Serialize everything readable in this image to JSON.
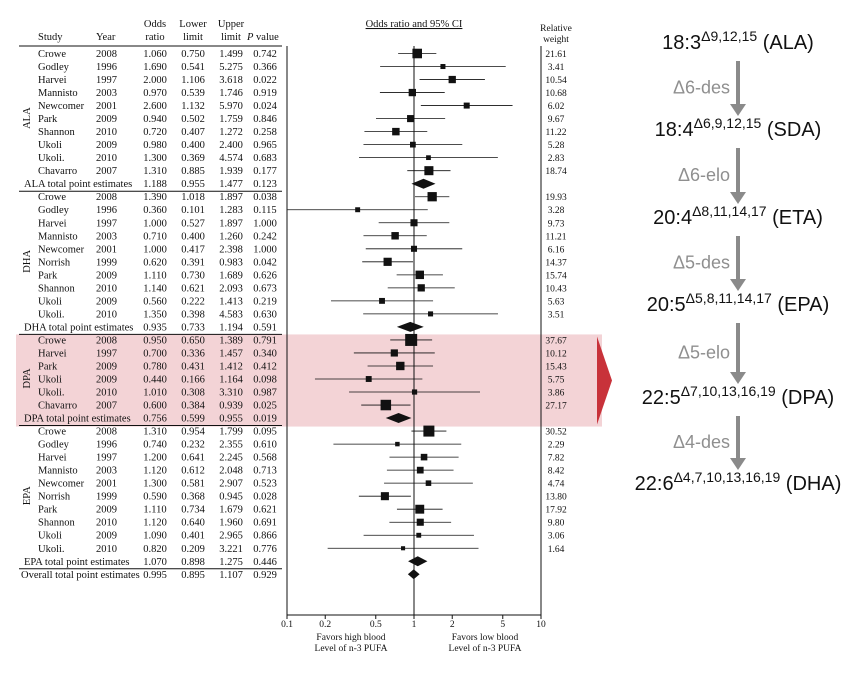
{
  "chart_data": {
    "type": "forest",
    "header": {
      "study": "Study",
      "year": "Year",
      "or": "Odds ratio",
      "lower": "Lower limit",
      "upper": "Upper limit",
      "p": "P value",
      "plot_title": "Odds ratio and 95% CI",
      "weight": "Relative weight"
    },
    "x_axis": {
      "scale": "log",
      "range": [
        0.1,
        10
      ],
      "ticks": [
        "0.1",
        "0.2",
        "0.5",
        "1",
        "2",
        "5",
        "10"
      ],
      "left_label": [
        "Favors high blood",
        "Level of n-3 PUFA"
      ],
      "right_label": [
        "Favors low blood",
        "Level of n-3 PUFA"
      ]
    },
    "groups": [
      {
        "name": "ALA",
        "highlight": false,
        "rows": [
          {
            "study": "Crowe",
            "year": "2008",
            "or": "1.060",
            "lower": "0.750",
            "upper": "1.499",
            "p": "0.742",
            "weight": "21.61"
          },
          {
            "study": "Godley",
            "year": "1996",
            "or": "1.690",
            "lower": "0.541",
            "upper": "5.275",
            "p": "0.366",
            "weight": "3.41"
          },
          {
            "study": "Harvei",
            "year": "1997",
            "or": "2.000",
            "lower": "1.106",
            "upper": "3.618",
            "p": "0.022",
            "weight": "10.54"
          },
          {
            "study": "Mannisto",
            "year": "2003",
            "or": "0.970",
            "lower": "0.539",
            "upper": "1.746",
            "p": "0.919",
            "weight": "10.68"
          },
          {
            "study": "Newcomer",
            "year": "2001",
            "or": "2.600",
            "lower": "1.132",
            "upper": "5.970",
            "p": "0.024",
            "weight": "6.02"
          },
          {
            "study": "Park",
            "year": "2009",
            "or": "0.940",
            "lower": "0.502",
            "upper": "1.759",
            "p": "0.846",
            "weight": "9.67"
          },
          {
            "study": "Shannon",
            "year": "2010",
            "or": "0.720",
            "lower": "0.407",
            "upper": "1.272",
            "p": "0.258",
            "weight": "11.22"
          },
          {
            "study": "Ukoli",
            "year": "2009",
            "or": "0.980",
            "lower": "0.400",
            "upper": "2.400",
            "p": "0.965",
            "weight": "5.28"
          },
          {
            "study": "Ukoli.",
            "year": "2010",
            "or": "1.300",
            "lower": "0.369",
            "upper": "4.574",
            "p": "0.683",
            "weight": "2.83"
          },
          {
            "study": "Chavarro",
            "year": "2007",
            "or": "1.310",
            "lower": "0.885",
            "upper": "1.939",
            "p": "0.177",
            "weight": "18.74"
          }
        ],
        "total": {
          "label": "ALA total point estimates",
          "or": "1.188",
          "lower": "0.955",
          "upper": "1.477",
          "p": "0.123"
        }
      },
      {
        "name": "DHA",
        "highlight": false,
        "rows": [
          {
            "study": "Crowe",
            "year": "2008",
            "or": "1.390",
            "lower": "1.018",
            "upper": "1.897",
            "p": "0.038",
            "weight": "19.93"
          },
          {
            "study": "Godley",
            "year": "1996",
            "or": "0.360",
            "lower": "0.101",
            "upper": "1.283",
            "p": "0.115",
            "weight": "3.28"
          },
          {
            "study": "Harvei",
            "year": "1997",
            "or": "1.000",
            "lower": "0.527",
            "upper": "1.897",
            "p": "1.000",
            "weight": "9.73"
          },
          {
            "study": "Mannisto",
            "year": "2003",
            "or": "0.710",
            "lower": "0.400",
            "upper": "1.260",
            "p": "0.242",
            "weight": "11.21"
          },
          {
            "study": "Newcomer",
            "year": "2001",
            "or": "1.000",
            "lower": "0.417",
            "upper": "2.398",
            "p": "1.000",
            "weight": "6.16"
          },
          {
            "study": "Norrish",
            "year": "1999",
            "or": "0.620",
            "lower": "0.391",
            "upper": "0.983",
            "p": "0.042",
            "weight": "14.37"
          },
          {
            "study": "Park",
            "year": "2009",
            "or": "1.110",
            "lower": "0.730",
            "upper": "1.689",
            "p": "0.626",
            "weight": "15.74"
          },
          {
            "study": "Shannon",
            "year": "2010",
            "or": "1.140",
            "lower": "0.621",
            "upper": "2.093",
            "p": "0.673",
            "weight": "10.43"
          },
          {
            "study": "Ukoli",
            "year": "2009",
            "or": "0.560",
            "lower": "0.222",
            "upper": "1.413",
            "p": "0.219",
            "weight": "5.63"
          },
          {
            "study": "Ukoli.",
            "year": "2010",
            "or": "1.350",
            "lower": "0.398",
            "upper": "4.583",
            "p": "0.630",
            "weight": "3.51"
          }
        ],
        "total": {
          "label": "DHA total point estimates",
          "or": "0.935",
          "lower": "0.733",
          "upper": "1.194",
          "p": "0.591"
        }
      },
      {
        "name": "DPA",
        "highlight": true,
        "rows": [
          {
            "study": "Crowe",
            "year": "2008",
            "or": "0.950",
            "lower": "0.650",
            "upper": "1.389",
            "p": "0.791",
            "weight": "37.67"
          },
          {
            "study": "Harvei",
            "year": "1997",
            "or": "0.700",
            "lower": "0.336",
            "upper": "1.457",
            "p": "0.340",
            "weight": "10.12"
          },
          {
            "study": "Park",
            "year": "2009",
            "or": "0.780",
            "lower": "0.431",
            "upper": "1.412",
            "p": "0.412",
            "weight": "15.43"
          },
          {
            "study": "Ukoli",
            "year": "2009",
            "or": "0.440",
            "lower": "0.166",
            "upper": "1.164",
            "p": "0.098",
            "weight": "5.75"
          },
          {
            "study": "Ukoli.",
            "year": "2010",
            "or": "1.010",
            "lower": "0.308",
            "upper": "3.310",
            "p": "0.987",
            "weight": "3.86"
          },
          {
            "study": "Chavarro",
            "year": "2007",
            "or": "0.600",
            "lower": "0.384",
            "upper": "0.939",
            "p": "0.025",
            "weight": "27.17"
          }
        ],
        "total": {
          "label": "DPA total point estimates",
          "or": "0.756",
          "lower": "0.599",
          "upper": "0.955",
          "p": "0.019"
        }
      },
      {
        "name": "EPA",
        "highlight": false,
        "rows": [
          {
            "study": "Crowe",
            "year": "2008",
            "or": "1.310",
            "lower": "0.954",
            "upper": "1.799",
            "p": "0.095",
            "weight": "30.52"
          },
          {
            "study": "Godley",
            "year": "1996",
            "or": "0.740",
            "lower": "0.232",
            "upper": "2.355",
            "p": "0.610",
            "weight": "2.29"
          },
          {
            "study": "Harvei",
            "year": "1997",
            "or": "1.200",
            "lower": "0.641",
            "upper": "2.245",
            "p": "0.568",
            "weight": "7.82"
          },
          {
            "study": "Mannisto",
            "year": "2003",
            "or": "1.120",
            "lower": "0.612",
            "upper": "2.048",
            "p": "0.713",
            "weight": "8.42"
          },
          {
            "study": "Newcomer",
            "year": "2001",
            "or": "1.300",
            "lower": "0.581",
            "upper": "2.907",
            "p": "0.523",
            "weight": "4.74"
          },
          {
            "study": "Norrish",
            "year": "1999",
            "or": "0.590",
            "lower": "0.368",
            "upper": "0.945",
            "p": "0.028",
            "weight": "13.80"
          },
          {
            "study": "Park",
            "year": "2009",
            "or": "1.110",
            "lower": "0.734",
            "upper": "1.679",
            "p": "0.621",
            "weight": "17.92"
          },
          {
            "study": "Shannon",
            "year": "2010",
            "or": "1.120",
            "lower": "0.640",
            "upper": "1.960",
            "p": "0.691",
            "weight": "9.80"
          },
          {
            "study": "Ukoli",
            "year": "2009",
            "or": "1.090",
            "lower": "0.401",
            "upper": "2.965",
            "p": "0.866",
            "weight": "3.06"
          },
          {
            "study": "Ukoli.",
            "year": "2010",
            "or": "0.820",
            "lower": "0.209",
            "upper": "3.221",
            "p": "0.776",
            "weight": "1.64"
          }
        ],
        "total": {
          "label": "EPA total point estimates",
          "or": "1.070",
          "lower": "0.898",
          "upper": "1.275",
          "p": "0.446"
        }
      }
    ],
    "overall": {
      "label": "Overall total point estimates",
      "or": "0.995",
      "lower": "0.895",
      "upper": "1.107",
      "p": "0.929"
    }
  },
  "pathway": {
    "compounds": [
      {
        "base": "18:3",
        "sup": "Δ9,12,15",
        "name": "(ALA)"
      },
      {
        "base": "18:4",
        "sup": "Δ6,9,12,15",
        "name": "(SDA)"
      },
      {
        "base": "20:4",
        "sup": "Δ8,11,14,17",
        "name": "(ETA)"
      },
      {
        "base": "20:5",
        "sup": "Δ5,8,11,14,17",
        "name": "(EPA)"
      },
      {
        "base": "22:5",
        "sup": "Δ7,10,13,16,19",
        "name": "(DPA)"
      },
      {
        "base": "22:6",
        "sup": "Δ4,7,10,13,16,19",
        "name": "(DHA)"
      }
    ],
    "enzymes": [
      "Δ6-des",
      "Δ6-elo",
      "Δ5-des",
      "Δ5-elo",
      "Δ4-des"
    ]
  },
  "colors": {
    "highlight_band": "#f3d3d6",
    "highlight_arrow": "#c8323a",
    "pathway_arrow": "#8a8a8a",
    "enzyme_text": "#8f8f8f",
    "ink": "#111111"
  }
}
